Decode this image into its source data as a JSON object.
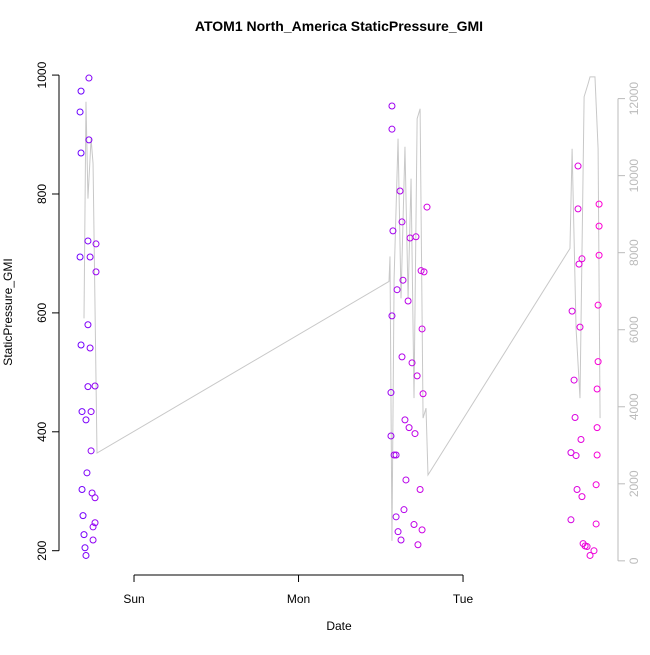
{
  "chart_data": {
    "type": "scatter",
    "title": "ATOM1 North_America StaticPressure_GMI",
    "xlabel": "Date",
    "ylabel": "StaticPressure_GMI",
    "xlim": [
      -0.456,
      2.942
    ],
    "xticks": [
      {
        "value": 0,
        "label": "Sun"
      },
      {
        "value": 1,
        "label": "Mon"
      },
      {
        "value": 2,
        "label": "Tue"
      }
    ],
    "ylim": [
      181,
      1022
    ],
    "yticks": [
      200,
      400,
      600,
      800,
      1000
    ],
    "y2lim": [
      -30,
      12950
    ],
    "y2ticks": [
      0,
      2000,
      4000,
      6000,
      8000,
      10000,
      12000
    ],
    "series": [
      {
        "type": "scatter",
        "color_range": [
          "#6a00ff",
          "#ff00d4"
        ],
        "x": [
          -0.328,
          -0.322,
          -0.322,
          -0.328,
          -0.322,
          -0.316,
          -0.316,
          -0.31,
          -0.304,
          -0.298,
          -0.292,
          -0.292,
          -0.286,
          -0.28,
          -0.28,
          -0.28,
          -0.274,
          -0.274,
          -0.267,
          -0.267,
          -0.261,
          -0.261,
          -0.255,
          -0.249,
          -0.249,
          -0.237,
          -0.237,
          -0.237,
          -0.231,
          -0.231,
          1.562,
          1.562,
          1.568,
          1.568,
          1.568,
          1.574,
          1.581,
          1.593,
          1.593,
          1.599,
          1.605,
          1.617,
          1.623,
          1.629,
          1.629,
          1.635,
          1.641,
          1.647,
          1.653,
          1.666,
          1.672,
          1.678,
          1.69,
          1.702,
          1.708,
          1.714,
          1.721,
          1.726,
          1.739,
          1.745,
          1.751,
          1.751,
          1.757,
          1.763,
          1.781,
          2.656,
          2.656,
          2.663,
          2.675,
          2.681,
          2.687,
          2.693,
          2.699,
          2.699,
          2.705,
          2.711,
          2.717,
          2.723,
          2.723,
          2.73,
          2.742,
          2.754,
          2.772,
          2.796,
          2.809,
          2.809,
          2.815,
          2.815,
          2.815,
          2.821,
          2.821,
          2.827,
          2.827,
          2.827
        ],
        "values": [
          938,
          869,
          973,
          694,
          546,
          434,
          303,
          259,
          227,
          205,
          192,
          420,
          331,
          721,
          580,
          476,
          995,
          891,
          694,
          541,
          434,
          368,
          297,
          240,
          218,
          477,
          289,
          247,
          716,
          669,
          466,
          393,
          948,
          909,
          595,
          738,
          361,
          257,
          361,
          639,
          232,
          805,
          218,
          753,
          526,
          655,
          269,
          420,
          319,
          620,
          407,
          726,
          516,
          244,
          397,
          728,
          494,
          210,
          303,
          671,
          573,
          235,
          464,
          669,
          778,
          365,
          252,
          603,
          487,
          424,
          360,
          303,
          847,
          775,
          682,
          576,
          387,
          291,
          691,
          212,
          208,
          207,
          192,
          200,
          245,
          311,
          407,
          472,
          361,
          518,
          613,
          697,
          746,
          783
        ]
      },
      {
        "type": "line",
        "axis": "y2",
        "color": "#c8c8c8",
        "x": [
          -0.304,
          -0.292,
          -0.28,
          -0.261,
          -0.249,
          -0.225,
          1.55,
          1.556,
          1.568,
          1.581,
          1.605,
          1.623,
          1.647,
          1.666,
          1.684,
          1.702,
          1.721,
          1.739,
          1.757,
          1.775,
          1.787,
          2.65,
          2.663,
          2.687,
          2.711,
          2.736,
          2.76,
          2.772,
          2.802,
          2.821,
          2.833
        ],
        "values": [
          6295,
          11917,
          9404,
          10959,
          10311,
          2798,
          7254,
          7902,
          518,
          7332,
          10959,
          6813,
          10751,
          6813,
          9922,
          4223,
          11477,
          11736,
          3705,
          3964,
          2228,
          8109,
          10699,
          6036,
          4223,
          12047,
          12383,
          12565,
          12565,
          10699,
          3705
        ]
      }
    ]
  }
}
